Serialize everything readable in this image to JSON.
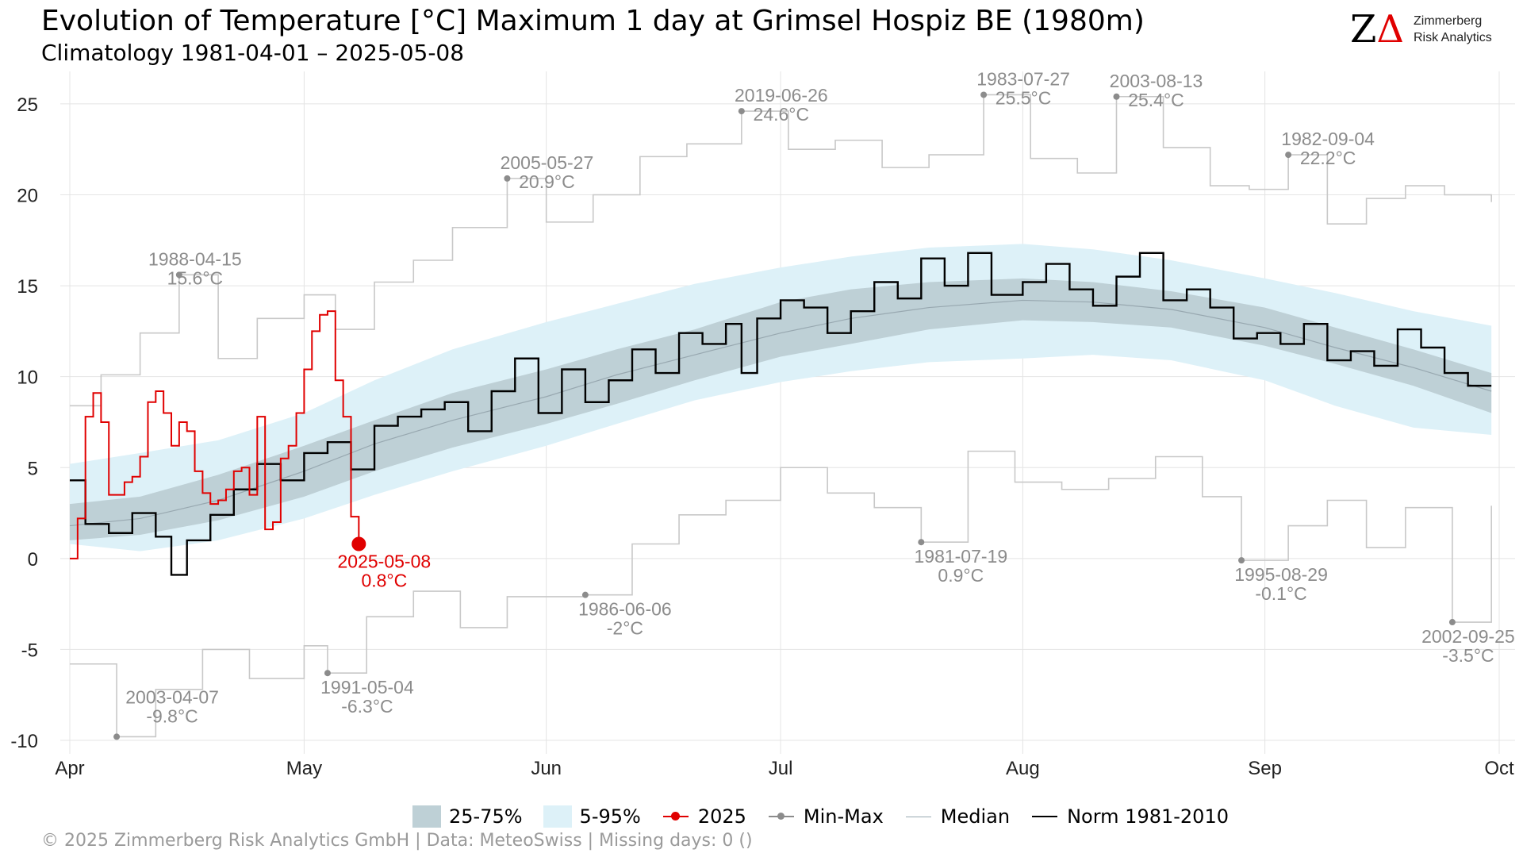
{
  "title": "Evolution of Temperature [°C] Maximum 1 day at Grimsel Hospiz  BE (1980m)",
  "subtitle": "Climatology 1981-04-01 – 2025-05-08",
  "logo": {
    "line1": "Zimmerberg",
    "line2": "Risk Analytics",
    "mark_z": "Z",
    "mark_delta": "Δ"
  },
  "footer": "©  2025 Zimmerberg Risk Analytics GmbH | Data: MeteoSwiss | Missing days: 0 ()",
  "legend": [
    {
      "key": "band1",
      "label": "25-75%"
    },
    {
      "key": "band2",
      "label": "5-95%"
    },
    {
      "key": "red",
      "label": "2025"
    },
    {
      "key": "grey",
      "label": "Min-Max"
    },
    {
      "key": "median",
      "label": "Median"
    },
    {
      "key": "norm",
      "label": "Norm 1981-2010"
    }
  ],
  "colors": {
    "band_25_75": "#bed0d6",
    "band_5_95": "#ddf1f8",
    "current_year": "#e00000",
    "minmax": "#c8c8c8",
    "minmax_point": "#8c8c8c",
    "median": "#98a8b0",
    "norm": "#000000",
    "annotation": "#8c8c8c"
  },
  "chart_data": {
    "type": "line",
    "x_axis": {
      "type": "date",
      "start": "04-01",
      "end": "10-01",
      "ticks": [
        "Apr",
        "May",
        "Jun",
        "Jul",
        "Aug",
        "Sep",
        "Oct"
      ],
      "tick_dates": [
        "04-01",
        "05-01",
        "06-01",
        "07-01",
        "08-01",
        "09-01",
        "10-01"
      ]
    },
    "y_axis": {
      "ylim": [
        -10,
        26
      ],
      "ticks": [
        -10,
        -5,
        0,
        5,
        10,
        15,
        20,
        25
      ]
    },
    "grid": true,
    "legend_position": "bottom",
    "band_5_95": [
      [
        "04-01",
        0.8,
        5.2
      ],
      [
        "04-10",
        0.4,
        5.8
      ],
      [
        "04-20",
        1.0,
        6.5
      ],
      [
        "05-01",
        2.2,
        8.0
      ],
      [
        "05-10",
        3.5,
        9.8
      ],
      [
        "05-20",
        4.8,
        11.5
      ],
      [
        "06-01",
        6.2,
        13.0
      ],
      [
        "06-10",
        7.4,
        14.0
      ],
      [
        "06-20",
        8.7,
        15.1
      ],
      [
        "07-01",
        9.7,
        16.0
      ],
      [
        "07-10",
        10.3,
        16.6
      ],
      [
        "07-20",
        10.8,
        17.1
      ],
      [
        "08-01",
        11.0,
        17.3
      ],
      [
        "08-10",
        11.2,
        17.0
      ],
      [
        "08-20",
        10.9,
        16.4
      ],
      [
        "09-01",
        9.8,
        15.4
      ],
      [
        "09-10",
        8.4,
        14.6
      ],
      [
        "09-20",
        7.2,
        13.6
      ],
      [
        "09-30",
        6.8,
        12.8
      ]
    ],
    "band_25_75": [
      [
        "04-01",
        1.0,
        3.0
      ],
      [
        "04-10",
        1.3,
        3.4
      ],
      [
        "04-20",
        2.1,
        4.6
      ],
      [
        "05-01",
        3.4,
        6.2
      ],
      [
        "05-10",
        4.8,
        7.6
      ],
      [
        "05-20",
        6.1,
        9.1
      ],
      [
        "06-01",
        7.4,
        10.4
      ],
      [
        "06-10",
        8.5,
        11.5
      ],
      [
        "06-20",
        9.8,
        12.6
      ],
      [
        "07-01",
        11.1,
        14.1
      ],
      [
        "07-10",
        11.8,
        14.8
      ],
      [
        "07-20",
        12.6,
        15.2
      ],
      [
        "08-01",
        13.1,
        15.4
      ],
      [
        "08-10",
        13.0,
        15.2
      ],
      [
        "08-20",
        12.7,
        14.7
      ],
      [
        "09-01",
        11.7,
        13.8
      ],
      [
        "09-10",
        10.7,
        12.7
      ],
      [
        "09-20",
        9.5,
        11.5
      ],
      [
        "09-30",
        8.0,
        10.2
      ]
    ],
    "series": [
      {
        "name": "2025",
        "points": [
          [
            "04-01",
            0.0
          ],
          [
            "04-02",
            2.2
          ],
          [
            "04-03",
            7.8
          ],
          [
            "04-04",
            9.1
          ],
          [
            "04-05",
            7.5
          ],
          [
            "04-06",
            3.5
          ],
          [
            "04-07",
            3.5
          ],
          [
            "04-08",
            4.2
          ],
          [
            "04-09",
            4.5
          ],
          [
            "04-10",
            5.6
          ],
          [
            "04-11",
            8.6
          ],
          [
            "04-12",
            9.2
          ],
          [
            "04-13",
            8.0
          ],
          [
            "04-14",
            6.2
          ],
          [
            "04-15",
            7.5
          ],
          [
            "04-16",
            7.0
          ],
          [
            "04-17",
            4.8
          ],
          [
            "04-18",
            3.6
          ],
          [
            "04-19",
            3.0
          ],
          [
            "04-20",
            3.2
          ],
          [
            "04-21",
            3.8
          ],
          [
            "04-22",
            4.8
          ],
          [
            "04-23",
            5.0
          ],
          [
            "04-24",
            3.5
          ],
          [
            "04-25",
            7.8
          ],
          [
            "04-26",
            1.6
          ],
          [
            "04-27",
            2.0
          ],
          [
            "04-28",
            5.5
          ],
          [
            "04-29",
            6.2
          ],
          [
            "04-30",
            8.0
          ],
          [
            "05-01",
            10.4
          ],
          [
            "05-02",
            12.5
          ],
          [
            "05-03",
            13.4
          ],
          [
            "05-04",
            13.6
          ],
          [
            "05-05",
            9.8
          ],
          [
            "05-06",
            7.8
          ],
          [
            "05-07",
            2.3
          ],
          [
            "05-08",
            0.8
          ]
        ]
      },
      {
        "name": "Median",
        "points": [
          [
            "04-01",
            1.8
          ],
          [
            "04-10",
            2.2
          ],
          [
            "04-20",
            3.2
          ],
          [
            "05-01",
            4.8
          ],
          [
            "05-10",
            6.3
          ],
          [
            "05-20",
            7.6
          ],
          [
            "06-01",
            8.9
          ],
          [
            "06-10",
            10.1
          ],
          [
            "06-20",
            11.2
          ],
          [
            "07-01",
            12.4
          ],
          [
            "07-10",
            13.2
          ],
          [
            "07-20",
            13.8
          ],
          [
            "08-01",
            14.2
          ],
          [
            "08-10",
            14.1
          ],
          [
            "08-20",
            13.7
          ],
          [
            "09-01",
            12.7
          ],
          [
            "09-10",
            11.6
          ],
          [
            "09-20",
            10.5
          ],
          [
            "09-30",
            9.2
          ]
        ]
      },
      {
        "name": "Norm 1981-2010",
        "points": [
          [
            "04-01",
            4.3
          ],
          [
            "04-03",
            1.9
          ],
          [
            "04-06",
            1.4
          ],
          [
            "04-09",
            2.5
          ],
          [
            "04-12",
            1.2
          ],
          [
            "04-14",
            -0.9
          ],
          [
            "04-16",
            1.0
          ],
          [
            "04-19",
            2.4
          ],
          [
            "04-22",
            3.8
          ],
          [
            "04-25",
            5.2
          ],
          [
            "04-28",
            4.3
          ],
          [
            "05-01",
            5.8
          ],
          [
            "05-04",
            6.4
          ],
          [
            "05-07",
            4.9
          ],
          [
            "05-10",
            7.3
          ],
          [
            "05-13",
            7.8
          ],
          [
            "05-16",
            8.2
          ],
          [
            "05-19",
            8.6
          ],
          [
            "05-22",
            7.0
          ],
          [
            "05-25",
            9.2
          ],
          [
            "05-28",
            11.0
          ],
          [
            "05-31",
            8.0
          ],
          [
            "06-03",
            10.4
          ],
          [
            "06-06",
            8.6
          ],
          [
            "06-09",
            9.8
          ],
          [
            "06-12",
            11.5
          ],
          [
            "06-15",
            10.2
          ],
          [
            "06-18",
            12.4
          ],
          [
            "06-21",
            11.8
          ],
          [
            "06-24",
            12.9
          ],
          [
            "06-26",
            10.2
          ],
          [
            "06-28",
            13.2
          ],
          [
            "07-01",
            14.2
          ],
          [
            "07-04",
            13.8
          ],
          [
            "07-07",
            12.4
          ],
          [
            "07-10",
            13.6
          ],
          [
            "07-13",
            15.2
          ],
          [
            "07-16",
            14.3
          ],
          [
            "07-19",
            16.5
          ],
          [
            "07-22",
            15.0
          ],
          [
            "07-25",
            16.8
          ],
          [
            "07-28",
            14.5
          ],
          [
            "08-01",
            15.2
          ],
          [
            "08-04",
            16.2
          ],
          [
            "08-07",
            14.8
          ],
          [
            "08-10",
            13.9
          ],
          [
            "08-13",
            15.5
          ],
          [
            "08-16",
            16.8
          ],
          [
            "08-19",
            14.2
          ],
          [
            "08-22",
            14.8
          ],
          [
            "08-25",
            13.8
          ],
          [
            "08-28",
            12.1
          ],
          [
            "08-31",
            12.4
          ],
          [
            "09-03",
            11.8
          ],
          [
            "09-06",
            12.9
          ],
          [
            "09-09",
            10.9
          ],
          [
            "09-12",
            11.4
          ],
          [
            "09-15",
            10.6
          ],
          [
            "09-18",
            12.6
          ],
          [
            "09-21",
            11.6
          ],
          [
            "09-24",
            10.2
          ],
          [
            "09-27",
            9.5
          ],
          [
            "09-30",
            9.5
          ]
        ]
      },
      {
        "name": "Max",
        "points": [
          [
            "04-01",
            8.4
          ],
          [
            "04-05",
            10.1
          ],
          [
            "04-10",
            12.4
          ],
          [
            "04-15",
            15.6
          ],
          [
            "04-20",
            11.0
          ],
          [
            "04-25",
            13.2
          ],
          [
            "05-01",
            14.5
          ],
          [
            "05-05",
            12.6
          ],
          [
            "05-10",
            15.2
          ],
          [
            "05-15",
            16.4
          ],
          [
            "05-20",
            18.2
          ],
          [
            "05-27",
            20.9
          ],
          [
            "06-01",
            18.5
          ],
          [
            "06-07",
            20.0
          ],
          [
            "06-13",
            22.1
          ],
          [
            "06-19",
            22.8
          ],
          [
            "06-26",
            24.6
          ],
          [
            "07-02",
            22.5
          ],
          [
            "07-08",
            23.0
          ],
          [
            "07-14",
            21.5
          ],
          [
            "07-20",
            22.2
          ],
          [
            "07-27",
            25.5
          ],
          [
            "08-02",
            22.0
          ],
          [
            "08-08",
            21.2
          ],
          [
            "08-13",
            25.4
          ],
          [
            "08-19",
            22.6
          ],
          [
            "08-25",
            20.5
          ],
          [
            "08-30",
            20.3
          ],
          [
            "09-04",
            22.2
          ],
          [
            "09-09",
            18.4
          ],
          [
            "09-14",
            19.8
          ],
          [
            "09-19",
            20.5
          ],
          [
            "09-24",
            20.0
          ],
          [
            "09-30",
            19.6
          ]
        ]
      },
      {
        "name": "Min",
        "points": [
          [
            "04-01",
            -5.8
          ],
          [
            "04-07",
            -9.8
          ],
          [
            "04-12",
            -7.2
          ],
          [
            "04-18",
            -5.0
          ],
          [
            "04-24",
            -6.6
          ],
          [
            "05-01",
            -4.8
          ],
          [
            "05-04",
            -6.3
          ],
          [
            "05-09",
            -3.2
          ],
          [
            "05-15",
            -1.8
          ],
          [
            "05-21",
            -3.8
          ],
          [
            "05-27",
            -2.1
          ],
          [
            "06-06",
            -2.0
          ],
          [
            "06-12",
            0.8
          ],
          [
            "06-18",
            2.4
          ],
          [
            "06-24",
            3.2
          ],
          [
            "07-01",
            5.0
          ],
          [
            "07-07",
            3.6
          ],
          [
            "07-13",
            2.8
          ],
          [
            "07-19",
            0.9
          ],
          [
            "07-25",
            5.9
          ],
          [
            "07-31",
            4.2
          ],
          [
            "08-06",
            3.8
          ],
          [
            "08-12",
            4.4
          ],
          [
            "08-18",
            5.6
          ],
          [
            "08-24",
            3.4
          ],
          [
            "08-29",
            -0.1
          ],
          [
            "09-04",
            1.8
          ],
          [
            "09-09",
            3.2
          ],
          [
            "09-14",
            0.6
          ],
          [
            "09-19",
            2.8
          ],
          [
            "09-25",
            -3.5
          ],
          [
            "09-30",
            2.9
          ]
        ]
      }
    ],
    "annotations": [
      {
        "date": "04-15",
        "value": 15.6,
        "label_date": "1988-04-15",
        "label_value": "15.6°C",
        "kind": "max"
      },
      {
        "date": "05-27",
        "value": 20.9,
        "label_date": "2005-05-27",
        "label_value": "20.9°C",
        "kind": "max"
      },
      {
        "date": "06-26",
        "value": 24.6,
        "label_date": "2019-06-26",
        "label_value": "24.6°C",
        "kind": "max"
      },
      {
        "date": "07-27",
        "value": 25.5,
        "label_date": "1983-07-27",
        "label_value": "25.5°C",
        "kind": "max"
      },
      {
        "date": "08-13",
        "value": 25.4,
        "label_date": "2003-08-13",
        "label_value": "25.4°C",
        "kind": "max"
      },
      {
        "date": "09-04",
        "value": 22.2,
        "label_date": "1982-09-04",
        "label_value": "22.2°C",
        "kind": "max"
      },
      {
        "date": "04-07",
        "value": -9.8,
        "label_date": "2003-04-07",
        "label_value": "-9.8°C",
        "kind": "min"
      },
      {
        "date": "05-04",
        "value": -6.3,
        "label_date": "1991-05-04",
        "label_value": "-6.3°C",
        "kind": "min"
      },
      {
        "date": "06-06",
        "value": -2.0,
        "label_date": "1986-06-06",
        "label_value": "-2°C",
        "kind": "min"
      },
      {
        "date": "07-19",
        "value": 0.9,
        "label_date": "1981-07-19",
        "label_value": "0.9°C",
        "kind": "min"
      },
      {
        "date": "08-29",
        "value": -0.1,
        "label_date": "1995-08-29",
        "label_value": "-0.1°C",
        "kind": "min"
      },
      {
        "date": "09-25",
        "value": -3.5,
        "label_date": "2002-09-25",
        "label_value": "-3.5°C",
        "kind": "min"
      },
      {
        "date": "05-08",
        "value": 0.8,
        "label_date": "2025-05-08",
        "label_value": "0.8°C",
        "kind": "current"
      }
    ]
  }
}
